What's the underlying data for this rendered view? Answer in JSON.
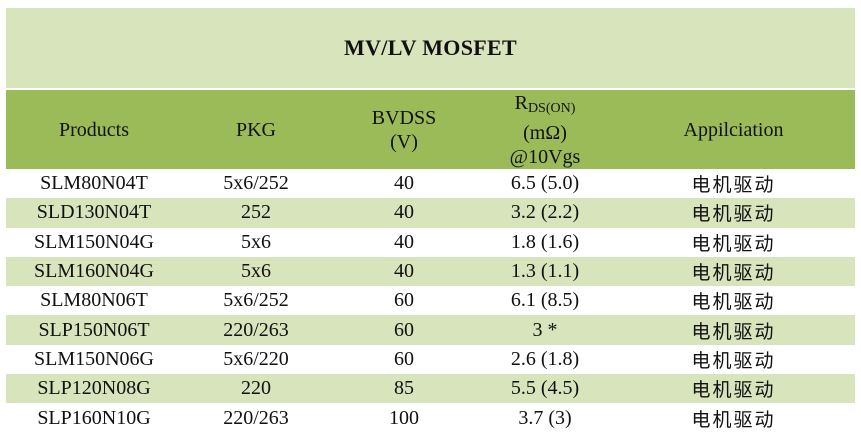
{
  "title": "MV/LV MOSFET",
  "headers": {
    "products": "Products",
    "pkg": "PKG",
    "bvdss_line1": "BVDSS",
    "bvdss_line2": "(V)",
    "rds_main": "R",
    "rds_sub": "DS(ON)",
    "rds_unit": "(mΩ)",
    "rds_cond": "@10Vgs",
    "application": "Appilciation"
  },
  "rows": [
    {
      "product": "SLM80N04T",
      "pkg": "5x6/252",
      "bvdss": "40",
      "rds": "6.5 (5.0)",
      "app": "电机驱动"
    },
    {
      "product": "SLD130N04T",
      "pkg": "252",
      "bvdss": "40",
      "rds": "3.2 (2.2)",
      "app": "电机驱动"
    },
    {
      "product": "SLM150N04G",
      "pkg": "5x6",
      "bvdss": "40",
      "rds": "1.8 (1.6)",
      "app": "电机驱动"
    },
    {
      "product": "SLM160N04G",
      "pkg": "5x6",
      "bvdss": "40",
      "rds": "1.3 (1.1)",
      "app": "电机驱动"
    },
    {
      "product": "SLM80N06T",
      "pkg": "5x6/252",
      "bvdss": "60",
      "rds": "6.1 (8.5)",
      "app": "电机驱动"
    },
    {
      "product": "SLP150N06T",
      "pkg": "220/263",
      "bvdss": "60",
      "rds": "3 *",
      "app": "电机驱动"
    },
    {
      "product": "SLM150N06G",
      "pkg": "5x6/220",
      "bvdss": "60",
      "rds": "2.6 (1.8)",
      "app": "电机驱动"
    },
    {
      "product": "SLP120N08G",
      "pkg": "220",
      "bvdss": "85",
      "rds": "5.5 (4.5)",
      "app": "电机驱动"
    },
    {
      "product": "SLP160N10G",
      "pkg": "220/263",
      "bvdss": "100",
      "rds": "3.7 (3)",
      "app": "电机驱动"
    }
  ],
  "colors": {
    "title_bg": "#d8e4bc",
    "header_bg": "#9bbb59",
    "band_bg": "#d8e4bc",
    "plain_bg": "#ffffff"
  }
}
